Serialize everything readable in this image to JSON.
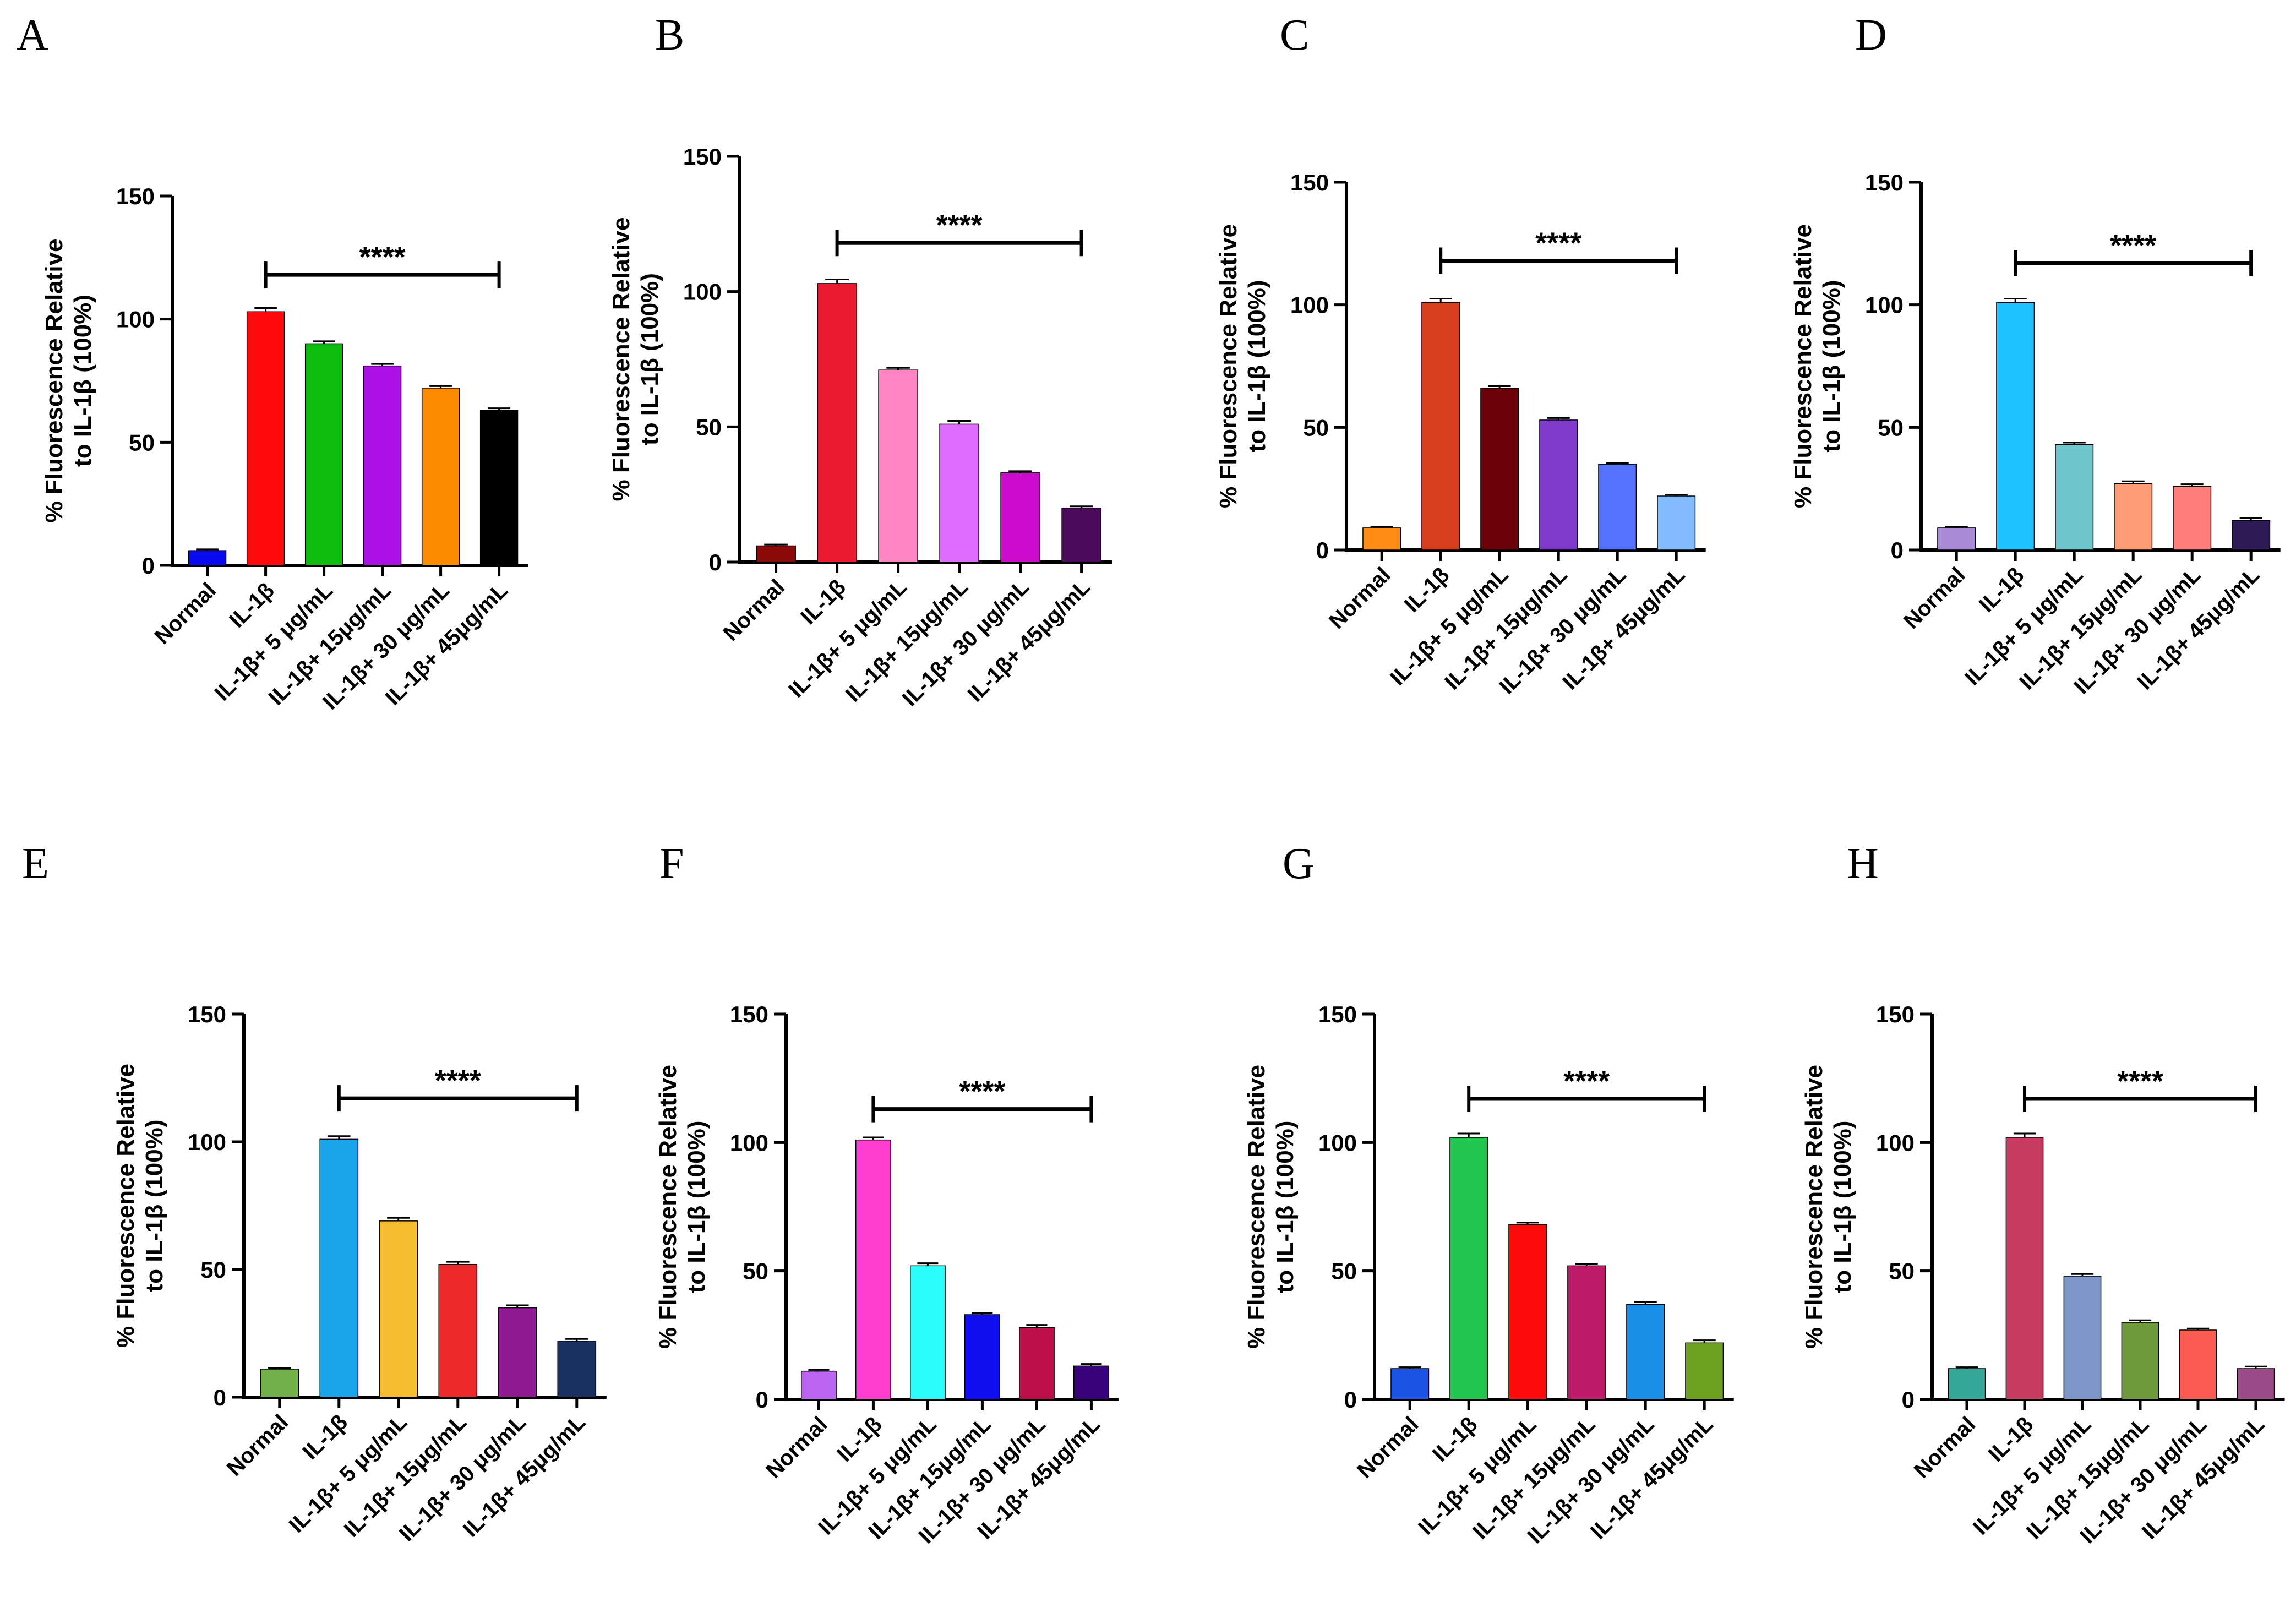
{
  "chart_data": [
    {
      "type": "bar",
      "panel": "A",
      "categories": [
        "Normal",
        "IL-1β",
        "IL-1β+ 5 μg/mL",
        "IL-1β+ 15μg/mL",
        "IL-1β+ 30 μg/mL",
        "IL-1β+ 45μg/mL"
      ],
      "values": [
        6,
        103,
        90,
        81,
        72,
        63
      ],
      "errors": [
        0.5,
        1.5,
        1.0,
        0.8,
        0.8,
        0.8
      ],
      "colors": [
        "#0a0af2",
        "#ff0a0a",
        "#0ebd0e",
        "#ad11e8",
        "#ff8c00",
        "#000000"
      ],
      "ylabel": [
        "% Fluorescence Relative",
        "to IL-1β (100%)"
      ],
      "ylim": [
        0,
        150
      ],
      "yticks": [
        0,
        50,
        100,
        150
      ],
      "significance": "****",
      "sig_y": 118
    },
    {
      "type": "bar",
      "panel": "B",
      "categories": [
        "Normal",
        "IL-1β",
        "IL-1β+ 5 μg/mL",
        "IL-1β+ 15μg/mL",
        "IL-1β+ 30 μg/mL",
        "IL-1β+ 45μg/mL"
      ],
      "values": [
        6,
        103,
        71,
        51,
        33,
        20
      ],
      "errors": [
        0.5,
        1.5,
        0.8,
        1.2,
        0.6,
        0.6
      ],
      "colors": [
        "#8b0a0a",
        "#eb1a30",
        "#ff85c5",
        "#df6bff",
        "#cc0ccc",
        "#4d0a5c"
      ],
      "ylabel": [
        "% Fluorescence Relative",
        "to IL-1β (100%)"
      ],
      "ylim": [
        0,
        150
      ],
      "yticks": [
        0,
        50,
        100,
        150
      ],
      "significance": "****",
      "sig_y": 118
    },
    {
      "type": "bar",
      "panel": "C",
      "categories": [
        "Normal",
        "IL-1β",
        "IL-1β+ 5 μg/mL",
        "IL-1β+ 15μg/mL",
        "IL-1β+ 30 μg/mL",
        "IL-1β+ 45μg/mL"
      ],
      "values": [
        9,
        101,
        66,
        53,
        35,
        22
      ],
      "errors": [
        0.5,
        1.5,
        0.8,
        0.8,
        0.5,
        0.5
      ],
      "colors": [
        "#ff8c14",
        "#d9401f",
        "#6a0008",
        "#7f3bcc",
        "#5573ff",
        "#82bcff"
      ],
      "ylabel": [
        "% Fluorescence Relative",
        "to IL-1β (100%)"
      ],
      "ylim": [
        0,
        150
      ],
      "yticks": [
        0,
        50,
        100,
        150
      ],
      "significance": "****",
      "sig_y": 118
    },
    {
      "type": "bar",
      "panel": "D",
      "categories": [
        "Normal",
        "IL-1β",
        "IL-1β+ 5 μg/mL",
        "IL-1β+ 15μg/mL",
        "IL-1β+ 30 μg/mL",
        "IL-1β+ 45μg/mL"
      ],
      "values": [
        9,
        101,
        43,
        27,
        26,
        12
      ],
      "errors": [
        0.5,
        1.5,
        0.8,
        1.0,
        0.8,
        1.0
      ],
      "colors": [
        "#a98ad6",
        "#1ec4ff",
        "#6ec6cc",
        "#ff9c78",
        "#ff7f7f",
        "#2e1a55"
      ],
      "ylabel": [
        "% Fluorescence Relative",
        "to IL-1β (100%)"
      ],
      "ylim": [
        0,
        150
      ],
      "yticks": [
        0,
        50,
        100,
        150
      ],
      "significance": "****",
      "sig_y": 117
    },
    {
      "type": "bar",
      "panel": "E",
      "categories": [
        "Normal",
        "IL-1β",
        "IL-1β+ 5 μg/mL",
        "IL-1β+ 15μg/mL",
        "IL-1β+ 30 μg/mL",
        "IL-1β+ 45μg/mL"
      ],
      "values": [
        11,
        101,
        69,
        52,
        35,
        22
      ],
      "errors": [
        0.5,
        1.2,
        1.2,
        1.0,
        1.0,
        0.8
      ],
      "colors": [
        "#72b04a",
        "#1aa6ea",
        "#f7bd31",
        "#ec2a2a",
        "#8f1a94",
        "#1a3060"
      ],
      "ylabel": [
        "% Fluorescence Relative",
        "to IL-1β (100%)"
      ],
      "ylim": [
        0,
        150
      ],
      "yticks": [
        0,
        50,
        100,
        150
      ],
      "significance": "****",
      "sig_y": 117
    },
    {
      "type": "bar",
      "panel": "F",
      "categories": [
        "Normal",
        "IL-1β",
        "IL-1β+ 5 μg/mL",
        "IL-1β+ 15μg/mL",
        "IL-1β+ 30 μg/mL",
        "IL-1β+ 45μg/mL"
      ],
      "values": [
        11,
        101,
        52,
        33,
        28,
        13
      ],
      "errors": [
        0.5,
        1.0,
        1.0,
        0.6,
        1.0,
        0.8
      ],
      "colors": [
        "#bb66f2",
        "#ff3dd1",
        "#2cfcfc",
        "#0f0ff0",
        "#bf0f4a",
        "#38037a"
      ],
      "ylabel": [
        "% Fluorescence Relative",
        "to IL-1β (100%)"
      ],
      "ylim": [
        0,
        150
      ],
      "yticks": [
        0,
        50,
        100,
        150
      ],
      "significance": "****",
      "sig_y": 113
    },
    {
      "type": "bar",
      "panel": "G",
      "categories": [
        "Normal",
        "IL-1β",
        "IL-1β+ 5 μg/mL",
        "IL-1β+ 15μg/mL",
        "IL-1β+ 30 μg/mL",
        "IL-1β+ 45μg/mL"
      ],
      "values": [
        12,
        102,
        68,
        52,
        37,
        22
      ],
      "errors": [
        0.5,
        1.5,
        0.8,
        0.8,
        1.0,
        1.0
      ],
      "colors": [
        "#1a54e6",
        "#22c54e",
        "#fc0a0a",
        "#bd1a6a",
        "#1a8fe6",
        "#6ea11f"
      ],
      "ylabel": [
        "% Fluorescence Relative",
        "to IL-1β (100%)"
      ],
      "ylim": [
        0,
        150
      ],
      "yticks": [
        0,
        50,
        100,
        150
      ],
      "significance": "****",
      "sig_y": 117
    },
    {
      "type": "bar",
      "panel": "H",
      "categories": [
        "Normal",
        "IL-1β",
        "IL-1β+ 5 μg/mL",
        "IL-1β+ 15μg/mL",
        "IL-1β+ 30 μg/mL",
        "IL-1β+ 45μg/mL"
      ],
      "values": [
        12,
        102,
        48,
        30,
        27,
        12
      ],
      "errors": [
        0.5,
        1.5,
        0.8,
        0.8,
        0.6,
        0.8
      ],
      "colors": [
        "#36a89a",
        "#c73d61",
        "#7f96c8",
        "#6f9a3c",
        "#fa5a50",
        "#9b4b87"
      ],
      "ylabel": [
        "% Fluorescence Relative",
        "to IL-1β (100%)"
      ],
      "ylim": [
        0,
        150
      ],
      "yticks": [
        0,
        50,
        100,
        150
      ],
      "significance": "****",
      "sig_y": 117
    }
  ]
}
